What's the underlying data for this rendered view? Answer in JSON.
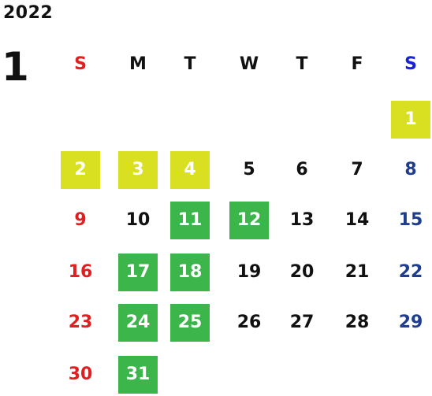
{
  "calendar": {
    "year": "2022",
    "month": "1",
    "weekdays": [
      {
        "label": "S",
        "color": "#e02020"
      },
      {
        "label": "M",
        "color": "#111111"
      },
      {
        "label": "T",
        "color": "#111111"
      },
      {
        "label": "W",
        "color": "#111111"
      },
      {
        "label": "T",
        "color": "#111111"
      },
      {
        "label": "F",
        "color": "#111111"
      },
      {
        "label": "S",
        "color": "#1a22d6"
      }
    ],
    "start_weekday": 6,
    "colors": {
      "sunday": "#e02020",
      "saturday": "#1f3d8f",
      "weekday": "#111111",
      "highlight_yellow": "#d9df21",
      "highlight_green": "#3cb54b"
    },
    "days": [
      {
        "label": "1",
        "highlight": "yellow"
      },
      {
        "label": "2",
        "highlight": "yellow"
      },
      {
        "label": "3",
        "highlight": "yellow"
      },
      {
        "label": "4",
        "highlight": "yellow"
      },
      {
        "label": "5"
      },
      {
        "label": "6"
      },
      {
        "label": "7"
      },
      {
        "label": "8"
      },
      {
        "label": "9"
      },
      {
        "label": "10"
      },
      {
        "label": "11",
        "highlight": "green"
      },
      {
        "label": "12",
        "highlight": "green"
      },
      {
        "label": "13"
      },
      {
        "label": "14"
      },
      {
        "label": "15"
      },
      {
        "label": "16"
      },
      {
        "label": "17",
        "highlight": "green"
      },
      {
        "label": "18",
        "highlight": "green"
      },
      {
        "label": "19"
      },
      {
        "label": "20"
      },
      {
        "label": "21"
      },
      {
        "label": "22"
      },
      {
        "label": "23"
      },
      {
        "label": "24",
        "highlight": "green"
      },
      {
        "label": "25",
        "highlight": "green"
      },
      {
        "label": "26"
      },
      {
        "label": "27"
      },
      {
        "label": "28"
      },
      {
        "label": "29"
      },
      {
        "label": "30"
      },
      {
        "label": "31",
        "highlight": "green"
      }
    ]
  }
}
